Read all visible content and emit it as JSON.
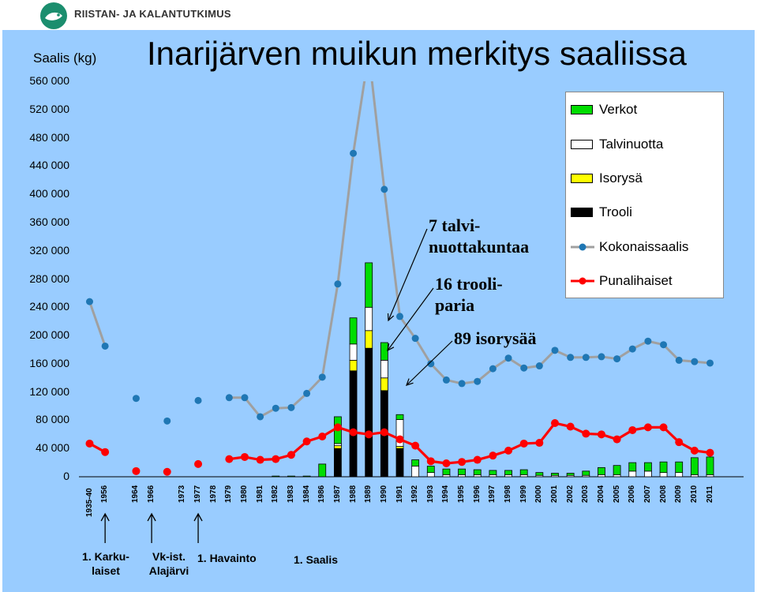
{
  "header": {
    "org": "RIISTAN- JA KALANTUTKIMUS"
  },
  "chart_data": {
    "type": "bar",
    "title": "Inarijärven muikun merkitys saaliissa",
    "ylabel": "Saalis (kg)",
    "ylim": [
      0,
      560000
    ],
    "yticks": [
      "560 000",
      "520 000",
      "480 000",
      "440 000",
      "400 000",
      "360 000",
      "320 000",
      "280 000",
      "240 000",
      "200 000",
      "160 000",
      "120 000",
      "80 000",
      "40 000",
      "0"
    ],
    "categories": [
      "1935-40",
      "1956",
      "",
      "1964",
      "1966",
      "",
      "1973",
      "1977",
      "1978",
      "1979",
      "1980",
      "1981",
      "1982",
      "1983",
      "1984",
      "1986",
      "1987",
      "1988",
      "1989",
      "1990",
      "1991",
      "1992",
      "1993",
      "1994",
      "1995",
      "1996",
      "1997",
      "1998",
      "1999",
      "2000",
      "2001",
      "2002",
      "2003",
      "2004",
      "2005",
      "2006",
      "2007",
      "2008",
      "2009",
      "2010",
      "2011"
    ],
    "stacked_series": [
      {
        "name": "Trooli",
        "color": "#000000",
        "values": [
          0,
          0,
          0,
          0,
          0,
          0,
          0,
          0,
          0,
          0,
          0,
          0,
          0,
          0,
          0,
          0,
          40000,
          150000,
          182000,
          122000,
          40000,
          0,
          0,
          0,
          0,
          0,
          0,
          0,
          0,
          0,
          0,
          0,
          0,
          0,
          0,
          0,
          0,
          0,
          0,
          0,
          0
        ]
      },
      {
        "name": "Isorysä",
        "color": "#FFFF00",
        "values": [
          0,
          0,
          0,
          0,
          0,
          0,
          0,
          0,
          0,
          0,
          0,
          0,
          0,
          0,
          0,
          0,
          4000,
          15000,
          25000,
          18000,
          3000,
          0,
          0,
          0,
          0,
          0,
          0,
          0,
          0,
          0,
          0,
          0,
          0,
          0,
          0,
          0,
          0,
          0,
          0,
          0,
          0
        ]
      },
      {
        "name": "Talvinuotta",
        "color": "#FFFFFF",
        "values": [
          0,
          0,
          0,
          0,
          0,
          0,
          0,
          0,
          0,
          0,
          0,
          0,
          0,
          0,
          0,
          0,
          3000,
          23000,
          33000,
          25000,
          38000,
          15000,
          6000,
          3000,
          3000,
          3000,
          3000,
          3000,
          3000,
          2000,
          2000,
          2000,
          2000,
          3000,
          3000,
          8000,
          8000,
          6000,
          6000,
          3000,
          3000
        ]
      },
      {
        "name": "Verkot",
        "color": "#00DD00",
        "values": [
          0,
          0,
          0,
          0,
          0,
          0,
          0,
          0,
          0,
          0,
          0,
          0,
          1000,
          1000,
          1000,
          18000,
          38000,
          37000,
          63000,
          25000,
          7000,
          9000,
          9000,
          8000,
          8000,
          7000,
          6000,
          6000,
          7000,
          4000,
          3000,
          3000,
          6000,
          10000,
          13000,
          12000,
          12000,
          15000,
          15000,
          24000,
          25000
        ]
      }
    ],
    "line_series": [
      {
        "name": "Kokonaissaalis",
        "color": "#A0A0A0",
        "marker_color": "#1F77B4",
        "values": [
          248000,
          185000,
          null,
          111000,
          null,
          79000,
          null,
          108000,
          null,
          112000,
          112000,
          85000,
          97000,
          98000,
          118000,
          141000,
          273000,
          458000,
          600000,
          407000,
          227000,
          196000,
          160000,
          137000,
          132000,
          135000,
          153000,
          168000,
          154000,
          157000,
          179000,
          169000,
          169000,
          170000,
          167000,
          181000,
          192000,
          187000,
          165000,
          163000,
          161000
        ]
      },
      {
        "name": "Punalihaiset",
        "color": "#FF0000",
        "values": [
          47000,
          35000,
          null,
          8000,
          null,
          7000,
          null,
          18000,
          null,
          25000,
          28000,
          24000,
          25000,
          31000,
          50000,
          57000,
          70000,
          63000,
          60000,
          63000,
          53000,
          44000,
          22000,
          19000,
          21000,
          24000,
          30000,
          37000,
          47000,
          48000,
          76000,
          71000,
          61000,
          60000,
          53000,
          66000,
          70000,
          70000,
          49000,
          37000,
          34000
        ]
      }
    ],
    "annotations": [
      "7 talvi-",
      "nuottakuntaa",
      "16 trooli-",
      "paria",
      "89 isorysää"
    ],
    "events": [
      "1. Karku-",
      "laiset",
      "Vk-ist.",
      "Alajärvi",
      "1. Havainto",
      "1. Saalis"
    ]
  }
}
